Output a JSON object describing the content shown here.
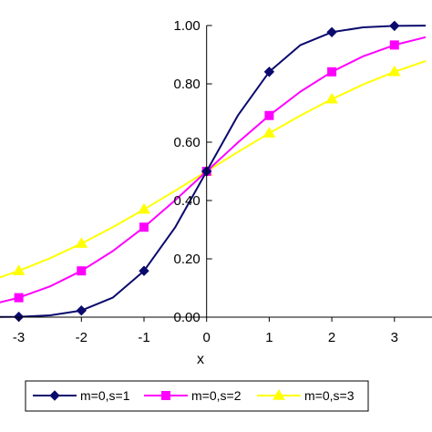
{
  "chart_data": {
    "type": "line",
    "xlabel": "x",
    "ylabel": "",
    "xlim": [
      -3.3,
      3.6
    ],
    "ylim": [
      0,
      1
    ],
    "x_ticks": [
      -3,
      -2,
      -1,
      0,
      1,
      2,
      3
    ],
    "x_tick_labels": [
      "-3",
      "-2",
      "-1",
      "0",
      "1",
      "2",
      "3"
    ],
    "y_ticks": [
      0,
      0.2,
      0.4,
      0.6,
      0.8,
      1.0
    ],
    "y_tick_labels": [
      "0.00",
      "0.20",
      "0.40",
      "0.60",
      "0.80",
      "1.00"
    ],
    "grid": false,
    "legend_position": "bottom",
    "series": [
      {
        "name": "m=0,s=1",
        "color": "#0a0a6e",
        "marker": "diamond",
        "x": [
          -3.5,
          -3,
          -2.5,
          -2,
          -1.5,
          -1,
          -0.5,
          0,
          0.5,
          1,
          1.5,
          2,
          2.5,
          3,
          3.5
        ],
        "y": [
          0.0002,
          0.0013,
          0.0062,
          0.0228,
          0.0668,
          0.1587,
          0.3085,
          0.5,
          0.6915,
          0.8413,
          0.9332,
          0.9772,
          0.9938,
          0.9987,
          0.9998
        ],
        "marker_x": [
          -3,
          -2,
          -1,
          0,
          1,
          2,
          3
        ]
      },
      {
        "name": "m=0,s=2",
        "color": "#ff00ff",
        "marker": "square",
        "x": [
          -3.5,
          -3,
          -2.5,
          -2,
          -1.5,
          -1,
          -0.5,
          0,
          0.5,
          1,
          1.5,
          2,
          2.5,
          3,
          3.5
        ],
        "y": [
          0.0401,
          0.0668,
          0.1056,
          0.1587,
          0.2266,
          0.3085,
          0.4013,
          0.5,
          0.5987,
          0.6915,
          0.7734,
          0.8413,
          0.8944,
          0.9332,
          0.9599
        ],
        "marker_x": [
          -3,
          -2,
          -1,
          0,
          1,
          2,
          3
        ]
      },
      {
        "name": "m=0,s=3",
        "color": "#ffff00",
        "marker": "triangle",
        "x": [
          -3.5,
          -3,
          -2.5,
          -2,
          -1.5,
          -1,
          -0.5,
          0,
          0.5,
          1,
          1.5,
          2,
          2.5,
          3,
          3.5
        ],
        "y": [
          0.1217,
          0.1587,
          0.2023,
          0.2525,
          0.3085,
          0.3694,
          0.4338,
          0.5,
          0.5662,
          0.6306,
          0.6915,
          0.7475,
          0.7977,
          0.8413,
          0.8783
        ],
        "marker_x": [
          -3,
          -2,
          -1,
          0,
          1,
          2,
          3
        ]
      }
    ]
  }
}
